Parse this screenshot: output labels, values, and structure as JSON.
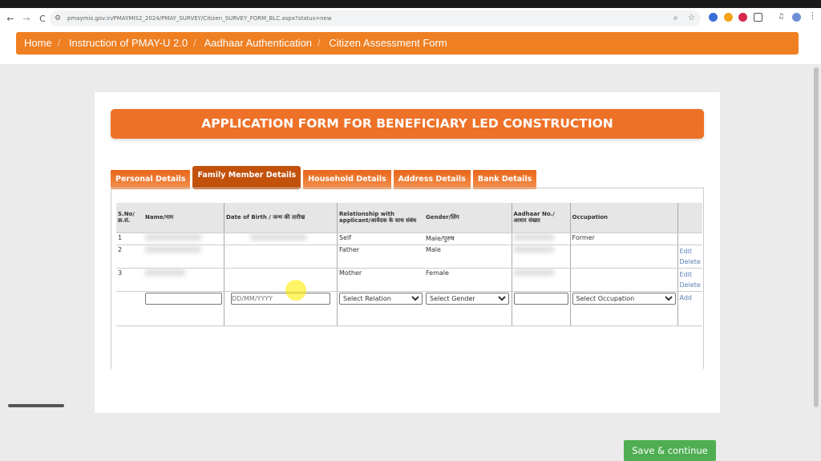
{
  "browser": {
    "url": "pmaymis.gov.in/PMAYMIS2_2024/PMAY_SURVEY/Citizen_SURVEY_FORM_BLC.aspx?status=new"
  },
  "breadcrumb": [
    "Home",
    "Instruction of PMAY-U 2.0",
    "Aadhaar Authentication",
    "Citizen Assessment Form"
  ],
  "colors": {
    "brand": "#ee7f22",
    "active_tab": "#c2510c",
    "save": "#4fae52"
  },
  "form": {
    "title": "APPLICATION FORM FOR BENEFICIARY LED CONSTRUCTION",
    "tabs": [
      {
        "label": "Personal Details"
      },
      {
        "label": "Family Member Details",
        "active": true
      },
      {
        "label": "Household Details"
      },
      {
        "label": "Address Details"
      },
      {
        "label": "Bank Details"
      }
    ],
    "table": {
      "headers": [
        "S.No/ क्र.सं.",
        "Name/नाम",
        "Date of Birth / जन्म की तारीख",
        "Relationship with applicant/आवेदक के साथ संबंध",
        "Gender/लिंग",
        "Aadhaar No./ आधार संख्या",
        "Occupation",
        ""
      ],
      "rows": [
        {
          "sno": "1",
          "relation": "Self",
          "gender": "Male/पुरुष",
          "occupation": "Former"
        },
        {
          "sno": "2",
          "relation": "Father",
          "gender": "Male",
          "occupation": "",
          "edit": "Edit",
          "delete": "Delete"
        },
        {
          "sno": "3",
          "relation": "Mother",
          "gender": "Female",
          "occupation": "",
          "edit": "Edit",
          "delete": "Delete"
        }
      ],
      "new_row": {
        "dob_placeholder": "DD/MM/YYYY",
        "relation": "Select Relation",
        "gender": "Select Gender",
        "occupation": "Select Occupation",
        "add": "Add"
      }
    },
    "save_label": "Save & continue"
  }
}
